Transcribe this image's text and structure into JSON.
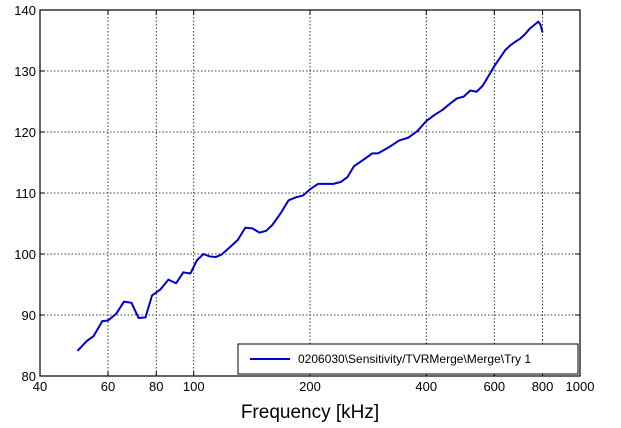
{
  "chart_data": {
    "type": "line",
    "xscale": "log",
    "xlabel": "Frequency [kHz]",
    "ylabel": "",
    "title": "",
    "xlim": [
      40,
      1000
    ],
    "ylim": [
      80,
      140
    ],
    "grid": true,
    "legend_position": "bottom-right",
    "x_ticks": [
      40,
      60,
      80,
      100,
      200,
      400,
      600,
      800,
      1000
    ],
    "x_tick_labels": [
      "40",
      "60",
      "80",
      "100",
      "200",
      "400",
      "600",
      "800",
      "1000"
    ],
    "y_ticks": [
      80,
      90,
      100,
      110,
      120,
      130,
      140
    ],
    "y_tick_labels": [
      "80",
      "90",
      "100",
      "110",
      "120",
      "130",
      "140"
    ],
    "line_color": "#0000cc",
    "series": [
      {
        "name": "0206030\\Sensitivity/TVRMerge\\Merge\\Try 1",
        "x": [
          50,
          53,
          55,
          58,
          60,
          63,
          66,
          69,
          72,
          75,
          78,
          82,
          86,
          90,
          94,
          98,
          102,
          106,
          110,
          114,
          118,
          124,
          130,
          136,
          142,
          148,
          154,
          160,
          168,
          176,
          184,
          192,
          200,
          210,
          220,
          230,
          240,
          250,
          260,
          270,
          280,
          290,
          300,
          320,
          340,
          360,
          380,
          400,
          420,
          440,
          460,
          480,
          500,
          520,
          540,
          560,
          580,
          600,
          620,
          640,
          660,
          680,
          700,
          720,
          740,
          760,
          780,
          790,
          800
        ],
        "y": [
          84.1,
          85.8,
          86.5,
          89.0,
          89.1,
          90.2,
          92.2,
          92.0,
          89.5,
          89.6,
          93.2,
          94.2,
          95.8,
          95.2,
          97.0,
          96.8,
          99.0,
          100.0,
          99.6,
          99.5,
          99.9,
          101.1,
          102.3,
          104.3,
          104.2,
          103.5,
          103.8,
          104.8,
          106.7,
          108.8,
          109.3,
          109.6,
          110.6,
          111.5,
          111.5,
          111.5,
          111.8,
          112.6,
          114.4,
          115.1,
          115.8,
          116.5,
          116.5,
          117.5,
          118.6,
          119.1,
          120.2,
          121.8,
          122.8,
          123.6,
          124.6,
          125.5,
          125.8,
          126.8,
          126.6,
          127.6,
          129.2,
          130.8,
          132.1,
          133.4,
          134.2,
          134.8,
          135.3,
          136.0,
          136.9,
          137.5,
          138.1,
          137.6,
          136.3
        ]
      }
    ]
  }
}
